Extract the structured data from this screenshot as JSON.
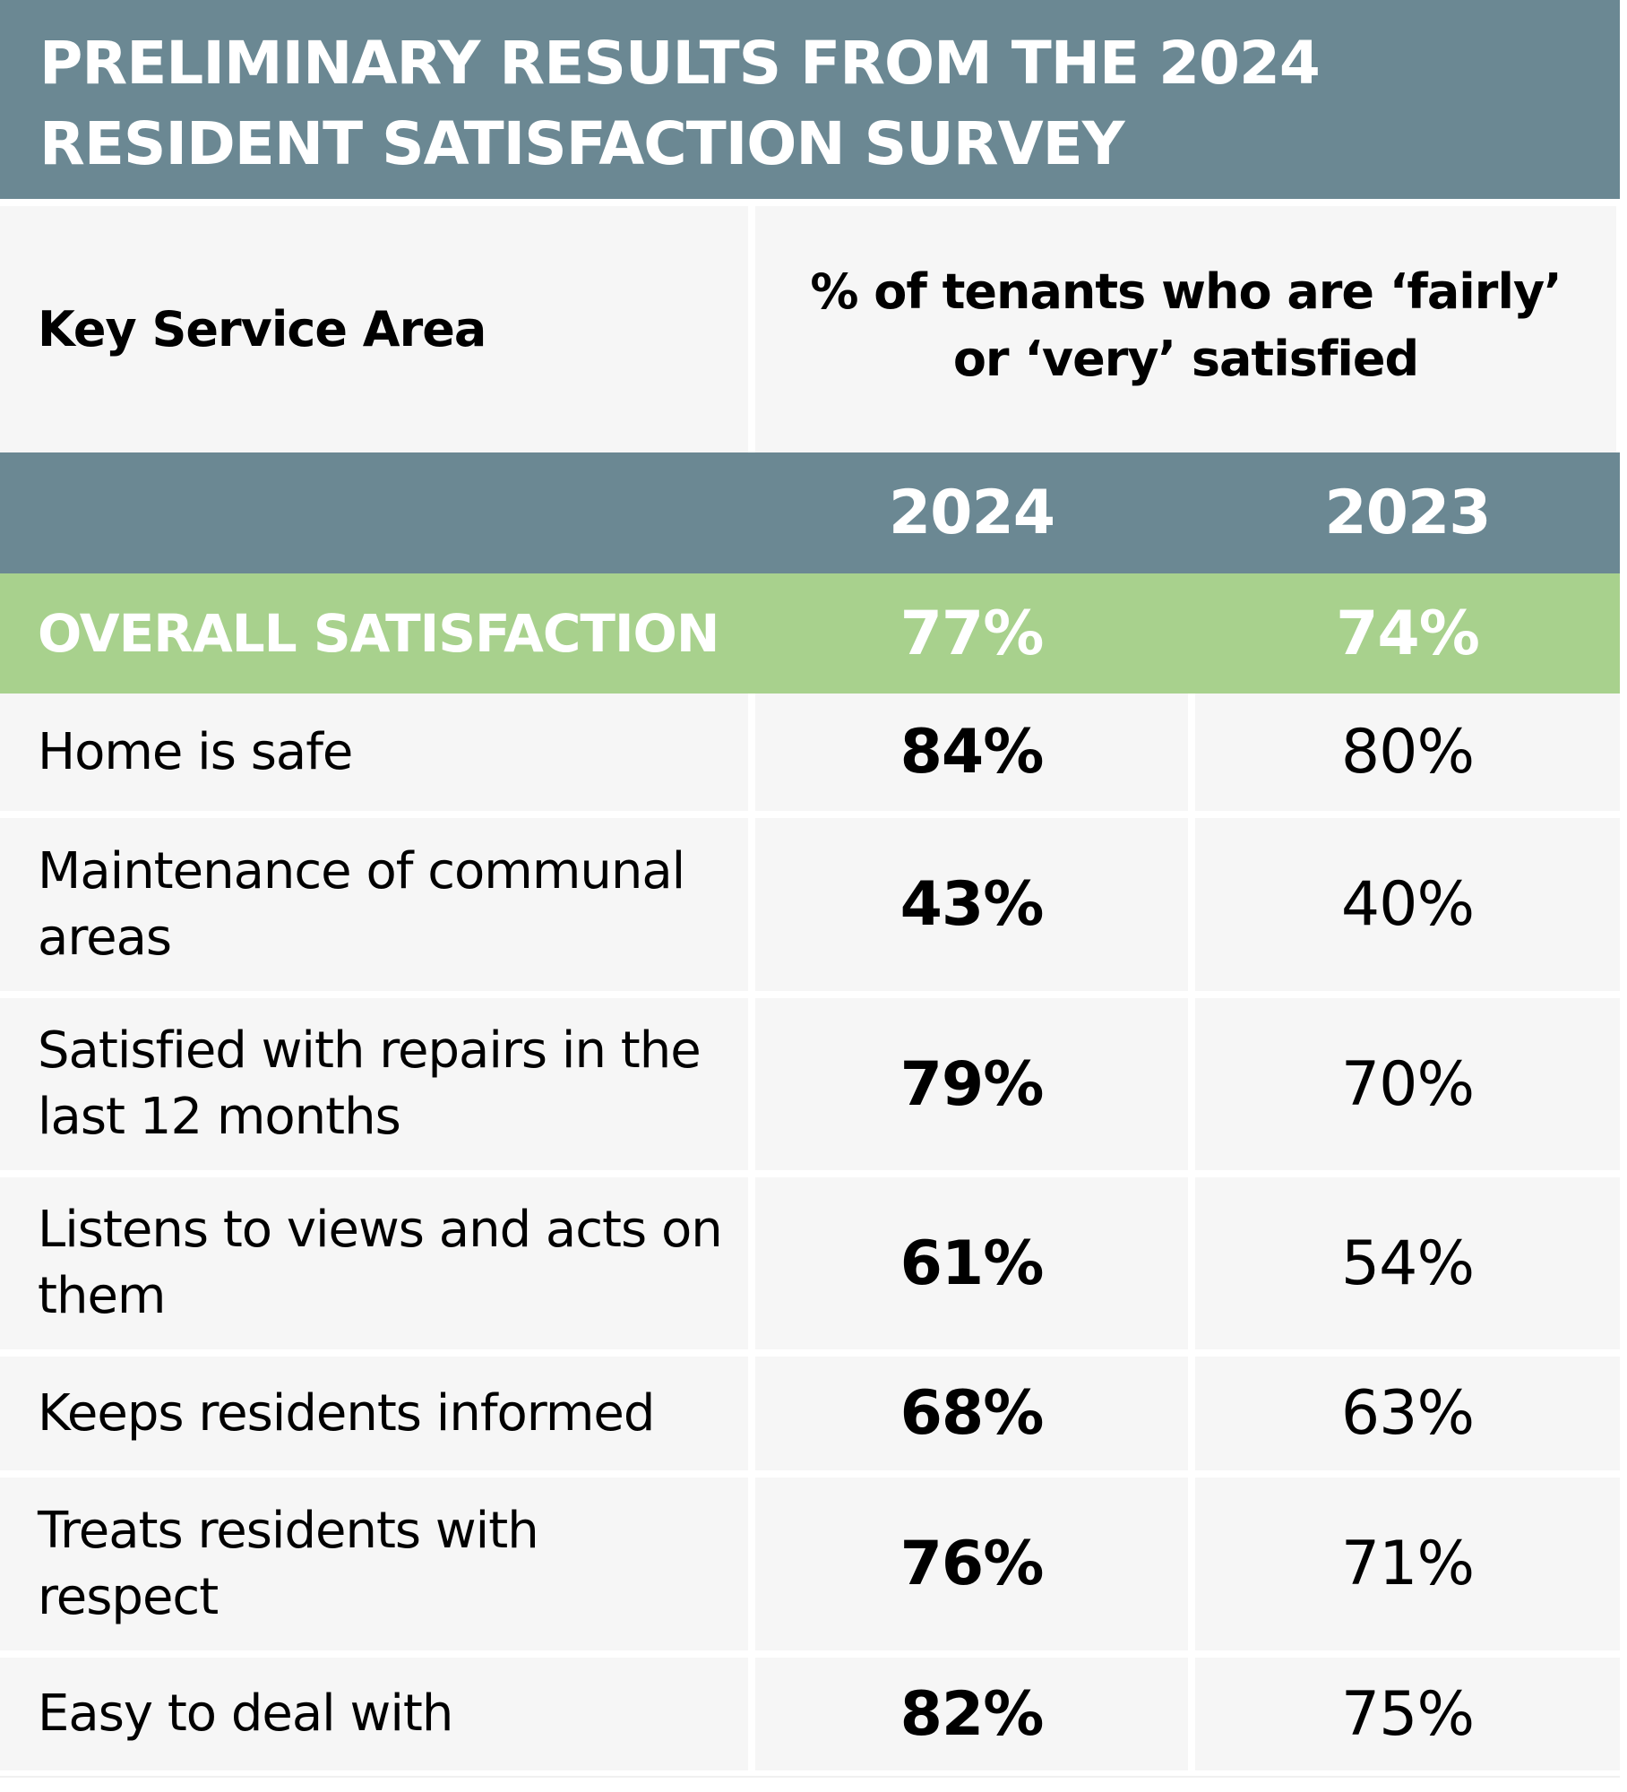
{
  "title": {
    "line1": "PRELIMINARY RESULTS FROM THE 2024",
    "line2": "RESIDENT SATISFACTION SURVEY"
  },
  "header": {
    "key_service_area": "Key Service Area",
    "percent_label": "% of tenants who are ‘fairly’ or ‘very’ satisfied"
  },
  "years": {
    "current": "2024",
    "previous": "2023"
  },
  "overall": {
    "label": "OVERALL SATISFACTION",
    "v2024": "77%",
    "v2023": "74%"
  },
  "rows": [
    {
      "label": "Home is safe",
      "v2024": "84%",
      "v2023": "80%"
    },
    {
      "label": "Maintenance of communal areas",
      "v2024": "43%",
      "v2023": "40%"
    },
    {
      "label": "Satisfied with repairs in the last 12 months",
      "v2024": "79%",
      "v2023": "70%"
    },
    {
      "label": "Listens to views and acts on them",
      "v2024": "61%",
      "v2023": "54%"
    },
    {
      "label": "Keeps residents informed",
      "v2024": "68%",
      "v2023": "63%"
    },
    {
      "label": "Treats residents with respect",
      "v2024": "76%",
      "v2023": "71%"
    },
    {
      "label": "Easy to deal with",
      "v2024": "82%",
      "v2023": "75%"
    }
  ],
  "colors": {
    "header_bg": "#6b8893",
    "overall_bg": "#a8d18d",
    "cell_bg": "#f6f6f6",
    "header_text": "#ffffff",
    "body_text": "#000000"
  }
}
